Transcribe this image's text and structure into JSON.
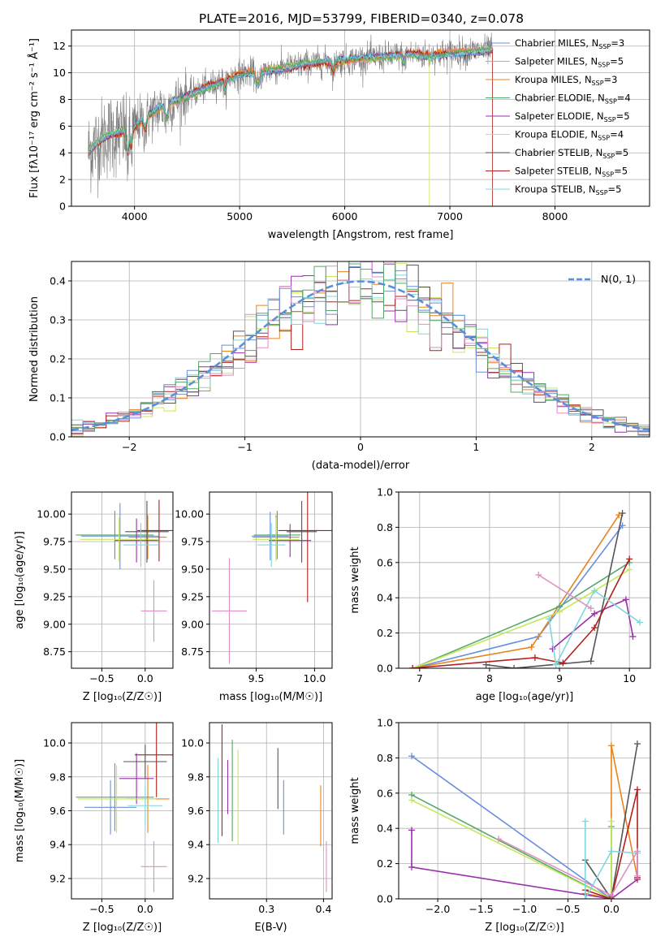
{
  "figure_title": "PLATE=2016, MJD=53799, FIBERID=0340, z=0.078",
  "series_colors": [
    "#6a8fdb",
    "#e8841e",
    "#55a868",
    "#9b2fae",
    "#c5e85a",
    "#555555",
    "#b0201e",
    "#7fd7dc",
    "#e08fc0",
    "#888888"
  ],
  "chart_data": [
    {
      "id": "spectrum",
      "type": "line",
      "title": "PLATE=2016, MJD=53799, FIBERID=0340, z=0.078",
      "xlabel": "wavelength [Angstrom, rest frame]",
      "ylabel": "Flux [fλ10⁻¹⁷ erg cm⁻² s⁻¹ Å⁻¹]",
      "xlim": [
        3400,
        8900
      ],
      "ylim": [
        0,
        13.2
      ],
      "xticks": [
        4000,
        5000,
        6000,
        7000,
        8000
      ],
      "yticks": [
        0,
        2,
        4,
        6,
        8,
        10,
        12
      ],
      "legend_position": "upper-right",
      "legend": [
        {
          "label": "Chabrier MILES, N_SSP=3",
          "color": "#6a8fdb"
        },
        {
          "label": "Salpeter MILES, N_SSP=5",
          "color": "#e08fc0"
        },
        {
          "label": "Kroupa MILES, N_SSP=3",
          "color": "#e8841e"
        },
        {
          "label": "Chabrier ELODIE, N_SSP=4",
          "color": "#55a868"
        },
        {
          "label": "Salpeter ELODIE, N_SSP=5",
          "color": "#9b2fae"
        },
        {
          "label": "Kroupa ELODIE, N_SSP=4",
          "color": "#c5e85a"
        },
        {
          "label": "Chabrier STELIB, N_SSP=5",
          "color": "#555555"
        },
        {
          "label": "Salpeter STELIB, N_SSP=5",
          "color": "#b0201e"
        },
        {
          "label": "Kroupa STELIB, N_SSP=5",
          "color": "#7fd7dc"
        }
      ],
      "continuum": {
        "x": [
          3550,
          3650,
          3750,
          3850,
          3950,
          4100,
          4250,
          4400,
          4600,
          4800,
          5000,
          5200,
          5400,
          5600,
          5800,
          6000,
          6200,
          6400,
          6600,
          6800,
          7000,
          7200,
          7400
        ],
        "y": [
          4.0,
          4.8,
          5.3,
          5.5,
          5.6,
          6.6,
          7.4,
          7.9,
          8.6,
          9.3,
          9.9,
          10.1,
          10.3,
          10.6,
          10.8,
          10.9,
          11.1,
          11.2,
          11.4,
          11.3,
          11.5,
          11.6,
          11.7
        ]
      }
    },
    {
      "id": "residuals",
      "type": "histogram",
      "xlabel": "(data-model)/error",
      "ylabel": "Normed distribution",
      "xlim": [
        -2.5,
        2.5
      ],
      "ylim": [
        0,
        0.45
      ],
      "xticks": [
        -2,
        -1,
        0,
        1,
        2
      ],
      "yticks": [
        0.0,
        0.1,
        0.2,
        0.3,
        0.4
      ],
      "legend_position": "upper-right",
      "reference_label": "N(0, 1)",
      "bin_width": 0.1
    },
    {
      "id": "age-vs-Z",
      "type": "scatter",
      "xlabel": "Z [log₁₀(Z/Z☉)]",
      "ylabel": "age  [log₁₀(age/yr)]",
      "xlim": [
        -0.85,
        0.32
      ],
      "ylim": [
        8.6,
        10.2
      ],
      "xticks": [
        -0.5,
        0.0
      ],
      "yticks": [
        8.75,
        9.0,
        9.25,
        9.5,
        9.75,
        10.0
      ],
      "points": [
        {
          "x": -0.29,
          "y": 9.8,
          "xerr": 0.45,
          "yerr": 0.3,
          "color": "#6a8fdb"
        },
        {
          "x": 0.03,
          "y": 9.79,
          "xerr": 0.22,
          "yerr": 0.2,
          "color": "#e8841e"
        },
        {
          "x": -0.35,
          "y": 9.81,
          "xerr": 0.45,
          "yerr": 0.22,
          "color": "#55a868"
        },
        {
          "x": -0.1,
          "y": 9.76,
          "xerr": 0.25,
          "yerr": 0.2,
          "color": "#9b2fae"
        },
        {
          "x": -0.3,
          "y": 9.77,
          "xerr": 0.45,
          "yerr": 0.2,
          "color": "#c5e85a"
        },
        {
          "x": 0.02,
          "y": 9.84,
          "xerr": 0.25,
          "yerr": 0.28,
          "color": "#555555"
        },
        {
          "x": 0.16,
          "y": 9.85,
          "xerr": 0.25,
          "yerr": 0.28,
          "color": "#b0201e"
        },
        {
          "x": -0.05,
          "y": 9.72,
          "xerr": 0.2,
          "yerr": 0.2,
          "color": "#7fd7dc"
        },
        {
          "x": 0.1,
          "y": 9.12,
          "xerr": 0.15,
          "yerr": 0.28,
          "color": "#e08fc0"
        }
      ]
    },
    {
      "id": "age-vs-mass",
      "type": "scatter",
      "xlabel": "mass [log₁₀(M/M☉)]",
      "ylabel": "",
      "xlim": [
        9.1,
        10.15
      ],
      "ylim": [
        8.6,
        10.2
      ],
      "xticks": [
        9.5,
        10.0
      ],
      "yticks": [
        8.75,
        9.0,
        9.25,
        9.5,
        9.75,
        10.0
      ],
      "points": [
        {
          "x": 9.62,
          "y": 9.8,
          "xerr": 0.16,
          "yerr": 0.22,
          "color": "#6a8fdb"
        },
        {
          "x": 9.67,
          "y": 9.79,
          "xerr": 0.2,
          "yerr": 0.2,
          "color": "#e8841e"
        },
        {
          "x": 9.68,
          "y": 9.81,
          "xerr": 0.2,
          "yerr": 0.22,
          "color": "#55a868"
        },
        {
          "x": 9.79,
          "y": 9.76,
          "xerr": 0.18,
          "yerr": 0.15,
          "color": "#9b2fae"
        },
        {
          "x": 9.67,
          "y": 9.77,
          "xerr": 0.2,
          "yerr": 0.2,
          "color": "#c5e85a"
        },
        {
          "x": 9.89,
          "y": 9.84,
          "xerr": 0.13,
          "yerr": 0.28,
          "color": "#555555"
        },
        {
          "x": 9.94,
          "y": 9.85,
          "xerr": 0.25,
          "yerr": 0.65,
          "color": "#b0201e"
        },
        {
          "x": 9.63,
          "y": 9.72,
          "xerr": 0.12,
          "yerr": 0.2,
          "color": "#7fd7dc"
        },
        {
          "x": 9.27,
          "y": 9.12,
          "xerr": 0.15,
          "yerr": 0.48,
          "color": "#e08fc0"
        }
      ]
    },
    {
      "id": "massweight-vs-age",
      "type": "line",
      "xlabel": "age  [log₁₀(age/yr)]",
      "ylabel": "mass weight",
      "xlim": [
        6.7,
        10.3
      ],
      "ylim": [
        0,
        1.0
      ],
      "xticks": [
        7,
        8,
        9,
        10
      ],
      "yticks": [
        0.0,
        0.2,
        0.4,
        0.6,
        0.8,
        1.0
      ],
      "series": [
        {
          "color": "#6a8fdb",
          "x": [
            6.9,
            8.7,
            9.9
          ],
          "y": [
            0.0,
            0.18,
            0.81
          ]
        },
        {
          "color": "#e8841e",
          "x": [
            6.9,
            8.6,
            9.85
          ],
          "y": [
            0.0,
            0.12,
            0.87
          ]
        },
        {
          "color": "#55a868",
          "x": [
            6.9,
            9.0,
            10.0
          ],
          "y": [
            0.0,
            0.35,
            0.6
          ]
        },
        {
          "color": "#9b2fae",
          "x": [
            8.9,
            9.5,
            9.95,
            10.05
          ],
          "y": [
            0.11,
            0.31,
            0.39,
            0.18
          ]
        },
        {
          "color": "#c5e85a",
          "x": [
            6.9,
            9.0,
            10.0
          ],
          "y": [
            0.0,
            0.32,
            0.56
          ]
        },
        {
          "color": "#555555",
          "x": [
            7.95,
            8.35,
            9.45,
            9.9
          ],
          "y": [
            0.02,
            0.0,
            0.04,
            0.88
          ]
        },
        {
          "color": "#b0201e",
          "x": [
            6.9,
            8.65,
            9.05,
            9.5,
            10.0
          ],
          "y": [
            0.0,
            0.06,
            0.03,
            0.23,
            0.62
          ]
        },
        {
          "color": "#7fd7dc",
          "x": [
            8.85,
            8.95,
            9.5,
            10.15
          ],
          "y": [
            0.28,
            0.02,
            0.44,
            0.26
          ]
        },
        {
          "color": "#e08fc0",
          "x": [
            8.7,
            9.45
          ],
          "y": [
            0.53,
            0.34
          ]
        }
      ]
    },
    {
      "id": "mass-vs-Z",
      "type": "scatter",
      "xlabel": "Z [log₁₀(Z/Z☉)]",
      "ylabel": "mass [log₁₀(M/M☉)]",
      "xlim": [
        -0.85,
        0.32
      ],
      "ylim": [
        9.08,
        10.12
      ],
      "xticks": [
        -0.5,
        0.0
      ],
      "yticks": [
        9.2,
        9.4,
        9.6,
        9.8,
        10.0
      ],
      "points": [
        {
          "x": -0.4,
          "y": 9.62,
          "xerr": 0.3,
          "yerr": 0.16,
          "color": "#6a8fdb"
        },
        {
          "x": 0.03,
          "y": 9.67,
          "xerr": 0.25,
          "yerr": 0.2,
          "color": "#e8841e"
        },
        {
          "x": -0.35,
          "y": 9.68,
          "xerr": 0.45,
          "yerr": 0.2,
          "color": "#55a868"
        },
        {
          "x": -0.1,
          "y": 9.79,
          "xerr": 0.2,
          "yerr": 0.15,
          "color": "#9b2fae"
        },
        {
          "x": -0.33,
          "y": 9.67,
          "xerr": 0.45,
          "yerr": 0.2,
          "color": "#c5e85a"
        },
        {
          "x": 0.0,
          "y": 9.89,
          "xerr": 0.25,
          "yerr": 0.1,
          "color": "#555555"
        },
        {
          "x": 0.13,
          "y": 9.93,
          "xerr": 0.25,
          "yerr": 0.25,
          "color": "#b0201e"
        },
        {
          "x": 0.0,
          "y": 9.63,
          "xerr": 0.2,
          "yerr": 0.12,
          "color": "#7fd7dc"
        },
        {
          "x": 0.1,
          "y": 9.27,
          "xerr": 0.15,
          "yerr": 0.15,
          "color": "#e08fc0"
        }
      ]
    },
    {
      "id": "mass-vs-EBV",
      "type": "scatter",
      "xlabel": "E(B-V)",
      "ylabel": "",
      "xlim": [
        0.2,
        0.415
      ],
      "ylim": [
        9.08,
        10.12
      ],
      "xticks": [
        0.3,
        0.4
      ],
      "yticks": [
        9.2,
        9.4,
        9.6,
        9.8,
        10.0
      ],
      "points": [
        {
          "x": 0.33,
          "y": 9.62,
          "xerr": 0.0,
          "yerr": 0.16,
          "color": "#6a8fdb"
        },
        {
          "x": 0.395,
          "y": 9.57,
          "xerr": 0.0,
          "yerr": 0.18,
          "color": "#e8841e"
        },
        {
          "x": 0.24,
          "y": 9.72,
          "xerr": 0.0,
          "yerr": 0.3,
          "color": "#55a868"
        },
        {
          "x": 0.232,
          "y": 9.74,
          "xerr": 0.0,
          "yerr": 0.16,
          "color": "#9b2fae"
        },
        {
          "x": 0.25,
          "y": 9.68,
          "xerr": 0.0,
          "yerr": 0.28,
          "color": "#c5e85a"
        },
        {
          "x": 0.32,
          "y": 9.79,
          "xerr": 0.0,
          "yerr": 0.18,
          "color": "#555555"
        },
        {
          "x": 0.222,
          "y": 9.78,
          "xerr": 0.0,
          "yerr": 0.33,
          "color": "#b0201e"
        },
        {
          "x": 0.215,
          "y": 9.66,
          "xerr": 0.0,
          "yerr": 0.25,
          "color": "#7fd7dc"
        },
        {
          "x": 0.405,
          "y": 9.27,
          "xerr": 0.0,
          "yerr": 0.15,
          "color": "#e08fc0"
        }
      ]
    },
    {
      "id": "massweight-vs-Z",
      "type": "line",
      "xlabel": "Z [log₁₀(Z/Z☉)]",
      "ylabel": "mass weight",
      "xlim": [
        -2.45,
        0.45
      ],
      "ylim": [
        0,
        1.0
      ],
      "xticks": [
        -2.0,
        -1.5,
        -1.0,
        -0.5,
        0.0
      ],
      "yticks": [
        0.0,
        0.2,
        0.4,
        0.6,
        0.8,
        1.0
      ],
      "series": [
        {
          "color": "#6a8fdb",
          "x": [
            -2.3,
            0.0
          ],
          "y": [
            0.81,
            0.0
          ]
        },
        {
          "color": "#e8841e",
          "x": [
            -0.3,
            0.0,
            0.0,
            0.3
          ],
          "y": [
            0.03,
            0.0,
            0.87,
            0.12
          ]
        },
        {
          "color": "#55a868",
          "x": [
            -2.3,
            0.0,
            0.0
          ],
          "y": [
            0.59,
            0.0,
            0.41
          ]
        },
        {
          "color": "#9b2fae",
          "x": [
            -2.3,
            -2.3,
            0.0,
            0.3
          ],
          "y": [
            0.39,
            0.18,
            0.0,
            0.11
          ]
        },
        {
          "color": "#c5e85a",
          "x": [
            -2.3,
            0.0,
            0.0
          ],
          "y": [
            0.56,
            0.0,
            0.44
          ]
        },
        {
          "color": "#555555",
          "x": [
            -0.3,
            0.0,
            0.3
          ],
          "y": [
            0.22,
            0.0,
            0.88
          ]
        },
        {
          "color": "#b0201e",
          "x": [
            -0.3,
            0.0,
            0.3,
            0.3
          ],
          "y": [
            0.05,
            0.0,
            0.62,
            0.12
          ]
        },
        {
          "color": "#7fd7dc",
          "x": [
            -0.3,
            -0.3,
            0.0,
            0.3
          ],
          "y": [
            0.44,
            0.0,
            0.27,
            0.26
          ]
        },
        {
          "color": "#e08fc0",
          "x": [
            -1.3,
            0.0,
            0.3,
            0.3
          ],
          "y": [
            0.34,
            0.02,
            0.27,
            0.13
          ]
        }
      ]
    }
  ]
}
